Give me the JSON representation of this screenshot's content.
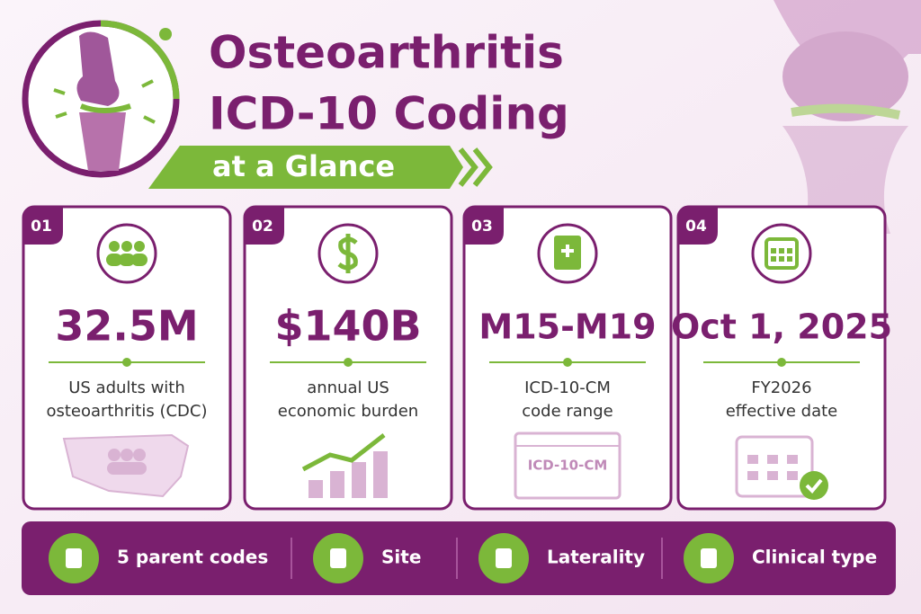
{
  "header": {
    "title_line1": "Osteoarthritis",
    "title_line2": "ICD-10 Coding",
    "subtitle": "at a Glance"
  },
  "cards": [
    {
      "number": "01",
      "stat": "32.5M",
      "description": [
        "US adults with",
        "osteoarthritis (CDC)"
      ]
    },
    {
      "number": "02",
      "stat": "$140B",
      "description": [
        "annual US",
        "economic burden"
      ]
    },
    {
      "number": "03",
      "stat": "M15-M19",
      "description": [
        "ICD-10-CM",
        "code range"
      ],
      "illustration_text": "ICD-10-CM"
    },
    {
      "number": "04",
      "stat": "Oct 1, 2025",
      "description": [
        "FY2026",
        "effective date"
      ]
    }
  ],
  "footer": {
    "items": [
      "5 parent codes",
      "Site",
      "Laterality",
      "Clinical type"
    ]
  }
}
